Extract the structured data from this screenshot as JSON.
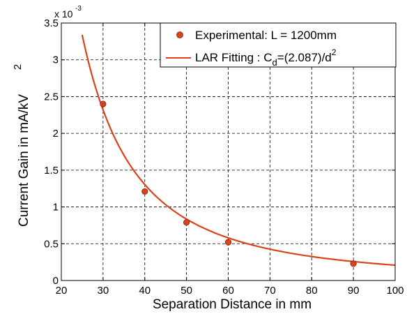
{
  "chart_data": {
    "type": "scatter",
    "xlabel": "Separation Distance in mm",
    "ylabel": "Current Gain in mA/kV",
    "ylabel_superscript": "2",
    "exponent": {
      "base": "x 10",
      "power": "-3"
    },
    "xlim": [
      20,
      100
    ],
    "ylim": [
      0,
      3.5
    ],
    "xticks": [
      20,
      30,
      40,
      50,
      60,
      70,
      80,
      90,
      100
    ],
    "yticks": [
      "0",
      "0.5",
      "1",
      "1.5",
      "2",
      "2.5",
      "3",
      "3.5"
    ],
    "ytick_values": [
      0,
      0.5,
      1,
      1.5,
      2,
      2.5,
      3,
      3.5
    ],
    "grid": true,
    "legend_position": "top-right",
    "series": [
      {
        "name": "Experimental: L = 1200mm",
        "kind": "markers",
        "color": "#d9421b",
        "x": [
          30,
          40,
          50,
          60,
          90
        ],
        "y": [
          2.4,
          1.21,
          0.79,
          0.52,
          0.23
        ]
      },
      {
        "name": "LAR Fitting",
        "kind": "line",
        "color": "#d9421b",
        "formula": "y = 2.087 / x^2 (mA/kV^2 x 10^-3 scale, x in mm)",
        "x_range": [
          25,
          100
        ]
      }
    ],
    "legend": {
      "experimental_label": "Experimental: L = 1200mm",
      "fit_label_prefix": "LAR Fitting : C",
      "fit_label_sub": "d",
      "fit_label_mid": "=(2.087)/d",
      "fit_label_sup": "2"
    }
  }
}
